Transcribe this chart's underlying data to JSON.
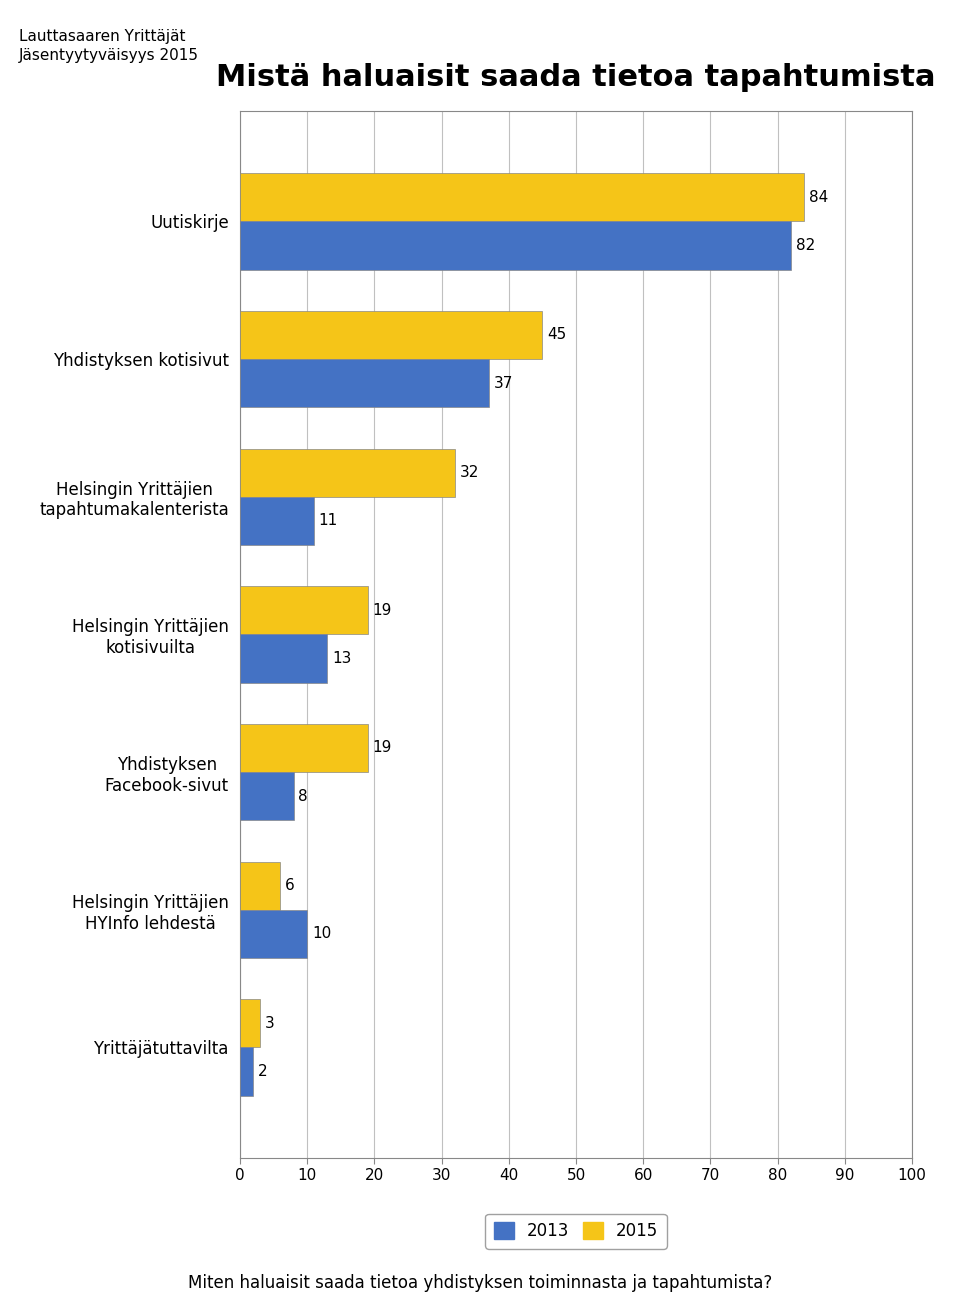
{
  "title": "Mistä haluaisit saada tietoa tapahtumista",
  "header_line1": "Lauttasaaren Yrittäjät",
  "header_line2": "Jäsentyytyväisyys 2015",
  "footer": "Miten haluaisit saada tietoa yhdistyksen toiminnasta ja tapahtumista?",
  "categories": [
    "Uutiskirje",
    "Yhdistyksen kotisivut",
    "Helsingin Yrittäjien\ntapahtumakalenterista",
    "Helsingin Yrittäjien\nkotisivuilta",
    "Yhdistyksen\nFacebook-sivut",
    "Helsingin Yrittäjien\nHYInfo lehdestä",
    "Yrittäjätuttavilta"
  ],
  "values_2015": [
    84,
    45,
    32,
    19,
    19,
    6,
    3
  ],
  "values_2013": [
    82,
    37,
    11,
    13,
    8,
    10,
    2
  ],
  "color_2015": "#F5C518",
  "color_2013": "#4472C4",
  "xlim": [
    0,
    100
  ],
  "xticks": [
    0,
    10,
    20,
    30,
    40,
    50,
    60,
    70,
    80,
    90,
    100
  ],
  "bar_height": 0.35,
  "legend_labels": [
    "2013",
    "2015"
  ],
  "title_fontsize": 22,
  "label_fontsize": 12,
  "tick_fontsize": 11,
  "value_fontsize": 11,
  "header_fontsize": 11,
  "footer_fontsize": 12,
  "background_color": "#FFFFFF",
  "chart_bg_color": "#FFFFFF",
  "grid_color": "#C0C0C0"
}
